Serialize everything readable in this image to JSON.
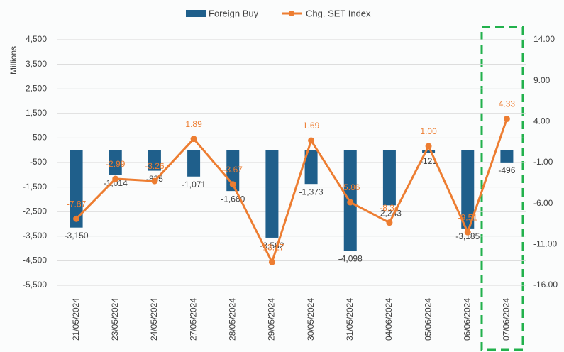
{
  "chart_data": {
    "type": "bar-line",
    "y_label": "Millions",
    "categories": [
      "21/05/2024",
      "23/05/2024",
      "24/05/2024",
      "27/05/2024",
      "28/05/2024",
      "29/05/2024",
      "30/05/2024",
      "31/05/2024",
      "04/06/2024",
      "05/06/2024",
      "06/06/2024",
      "07/06/2024"
    ],
    "series": [
      {
        "name": "Foreign Buy",
        "type": "bar",
        "color": "#1f5f8b",
        "values": [
          -3150,
          -1014,
          -835,
          -1071,
          -1660,
          -3562,
          -1373,
          -4098,
          -2243,
          -121,
          -3185,
          -496
        ],
        "value_labels": [
          "-3,150",
          "-1,014",
          "-835",
          "-1,071",
          "-1,660",
          "-3,562",
          "-1,373",
          "-4,098",
          "-2,243",
          "-121",
          "-3,185",
          "-496"
        ]
      },
      {
        "name": "Chg. SET Index",
        "type": "line",
        "axis": "y2",
        "color": "#ed7d31",
        "values": [
          -7.87,
          -2.99,
          -3.26,
          1.89,
          -3.67,
          -13.17,
          1.69,
          -5.86,
          -8.34,
          1.0,
          -9.51,
          4.33
        ],
        "value_labels": [
          "-7.87",
          "-2.99",
          "-3.26",
          "1.89",
          "-3.67",
          "-13.17",
          "1.69",
          "-5.86",
          "-8.34",
          "1.00",
          "-9.51",
          "4.33"
        ]
      }
    ],
    "ylim": [
      -5500,
      4500
    ],
    "yticks": [
      {
        "value": 4500,
        "label": "4,500"
      },
      {
        "value": 3500,
        "label": "3,500"
      },
      {
        "value": 2500,
        "label": "2,500"
      },
      {
        "value": 1500,
        "label": "1,500"
      },
      500,
      -500,
      {
        "value": -1500,
        "label": "-1,500"
      },
      {
        "value": -2500,
        "label": "-2,500"
      },
      {
        "value": -3500,
        "label": "-3,500"
      },
      {
        "value": -4500,
        "label": "-4,500"
      },
      {
        "value": -5500,
        "label": "-5,500"
      }
    ],
    "y2lim": [
      -16,
      14
    ],
    "y2ticks": [
      {
        "value": 14,
        "label": "14.00"
      },
      {
        "value": 9,
        "label": "9.00"
      },
      {
        "value": 4,
        "label": "4.00"
      },
      {
        "value": -1,
        "label": "-1.00"
      },
      {
        "value": -6,
        "label": "-6.00"
      },
      {
        "value": -11,
        "label": "-11.00"
      },
      {
        "value": -16,
        "label": "-16.00"
      }
    ],
    "grid": true
  }
}
